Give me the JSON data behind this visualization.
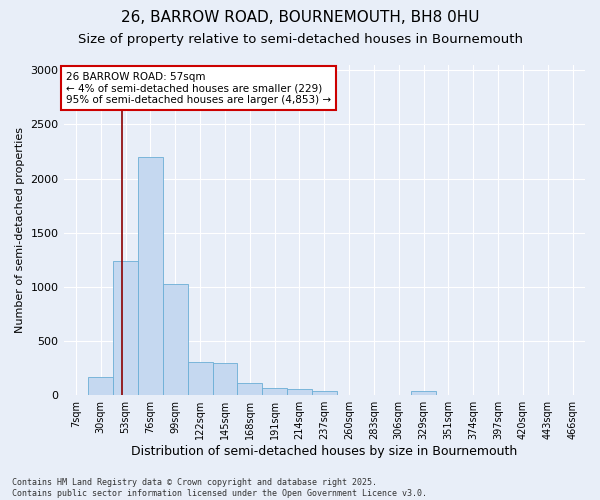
{
  "title_line1": "26, BARROW ROAD, BOURNEMOUTH, BH8 0HU",
  "title_line2": "Size of property relative to semi-detached houses in Bournemouth",
  "xlabel": "Distribution of semi-detached houses by size in Bournemouth",
  "ylabel": "Number of semi-detached properties",
  "categories": [
    "7sqm",
    "30sqm",
    "53sqm",
    "76sqm",
    "99sqm",
    "122sqm",
    "145sqm",
    "168sqm",
    "191sqm",
    "214sqm",
    "237sqm",
    "260sqm",
    "283sqm",
    "306sqm",
    "329sqm",
    "351sqm",
    "374sqm",
    "397sqm",
    "420sqm",
    "443sqm",
    "466sqm"
  ],
  "values": [
    0,
    160,
    1240,
    2200,
    1020,
    300,
    295,
    110,
    60,
    50,
    35,
    0,
    0,
    0,
    30,
    0,
    0,
    0,
    0,
    0,
    0
  ],
  "bar_color": "#c5d8f0",
  "bar_edge_color": "#6baed6",
  "vline_color": "#8b0000",
  "vline_x_index": 1.85,
  "annotation_box_text": "26 BARROW ROAD: 57sqm\n← 4% of semi-detached houses are smaller (229)\n95% of semi-detached houses are larger (4,853) →",
  "ylim": [
    0,
    3050
  ],
  "yticks": [
    0,
    500,
    1000,
    1500,
    2000,
    2500,
    3000
  ],
  "background_color": "#e8eef8",
  "grid_color": "#ffffff",
  "footnote": "Contains HM Land Registry data © Crown copyright and database right 2025.\nContains public sector information licensed under the Open Government Licence v3.0.",
  "title_fontsize": 11,
  "subtitle_fontsize": 9.5,
  "xlabel_fontsize": 9,
  "ylabel_fontsize": 8,
  "annot_fontsize": 7.5
}
